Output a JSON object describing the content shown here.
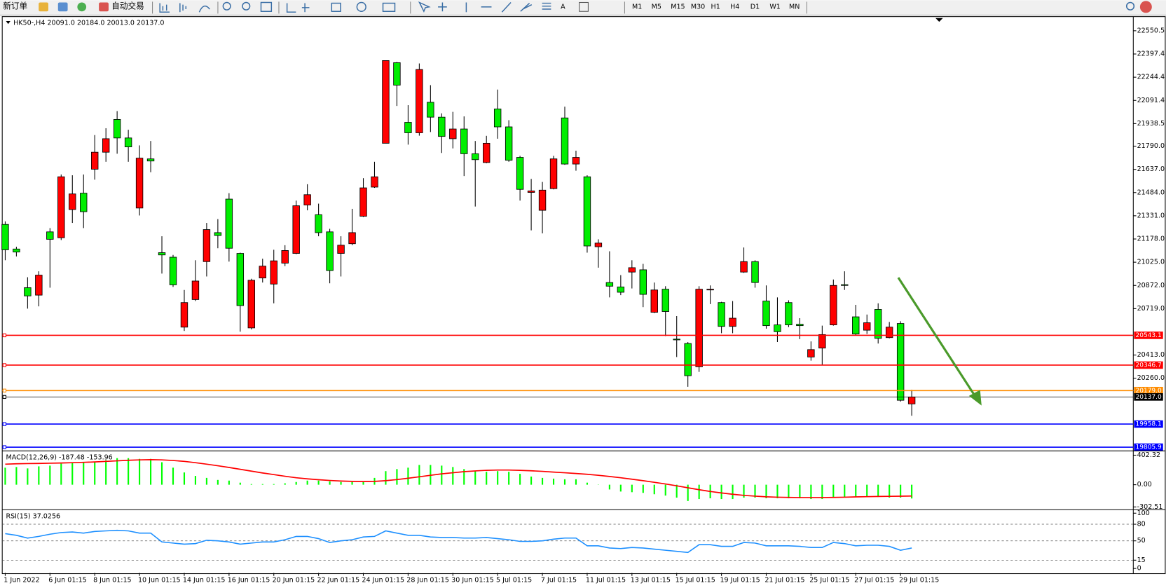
{
  "toolbar": {
    "new_order": "新订单",
    "auto_trading": "自动交易",
    "timeframes": [
      "M1",
      "M5",
      "M15",
      "M30",
      "H1",
      "H4",
      "D1",
      "W1",
      "MN"
    ]
  },
  "chart_data": [
    {
      "type": "candlestick",
      "title": "HK50-,H4  20091.0 20184.0 20013.0 20137.0",
      "categories": [
        "1 Jun 2022",
        null,
        null,
        null,
        "6 Jun 01:15",
        null,
        null,
        null,
        "8 Jun 01:15",
        null,
        null,
        null,
        "10 Jun 01:15",
        null,
        null,
        null,
        "14 Jun 01:15",
        null,
        null,
        null,
        "16 Jun 01:15",
        null,
        null,
        null,
        "20 Jun 01:15",
        null,
        null,
        null,
        "22 Jun 01:15",
        null,
        null,
        null,
        "24 Jun 01:15",
        null,
        null,
        null,
        "28 Jun 01:15",
        null,
        null,
        null,
        "30 Jun 01:15",
        null,
        null,
        null,
        "5 Jul 01:15",
        null,
        null,
        null,
        "7 Jul 01:15",
        null,
        null,
        null,
        "11 Jul 01:15",
        null,
        null,
        null,
        "13 Jul 01:15",
        null,
        null,
        null,
        "15 Jul 01:15",
        null,
        null,
        null,
        "19 Jul 01:15",
        null,
        null,
        null,
        "21 Jul 01:15",
        null,
        null,
        null,
        "25 Jul 01:15",
        null,
        null,
        null,
        "27 Jul 01:15",
        null,
        null,
        null,
        "29 Jul 01:15",
        null
      ],
      "open": [
        21274,
        21112,
        20857,
        20808,
        21225,
        21186,
        21372,
        21480,
        21638,
        21750,
        21966,
        21844,
        21382,
        21706,
        21088,
        21058,
        20597,
        20779,
        21029,
        21220,
        21441,
        21083,
        20592,
        20921,
        20881,
        21019,
        21083,
        21402,
        21338,
        21225,
        21083,
        21147,
        21328,
        21520,
        21809,
        22340,
        21947,
        21878,
        22079,
        21981,
        21839,
        21903,
        21740,
        21682,
        22035,
        21917,
        21716,
        21485,
        21367,
        21510,
        21976,
        21672,
        21588,
        21127,
        20891,
        20862,
        20960,
        20975,
        20695,
        20847,
        20518,
        20489,
        20336,
        20842,
        20759,
        20602,
        20960,
        21029,
        20769,
        20612,
        20759,
        20616,
        20400,
        20459,
        20612,
        20877,
        20665,
        20577,
        20714,
        20528,
        20621,
        20091
      ],
      "high": [
        21294,
        21127,
        20926,
        20965,
        21250,
        21603,
        21598,
        21603,
        21863,
        21908,
        22021,
        21898,
        21795,
        21824,
        21196,
        21073,
        20842,
        21038,
        21284,
        21309,
        21480,
        21088,
        20916,
        21048,
        21107,
        21137,
        21431,
        21539,
        21411,
        21245,
        21196,
        21377,
        21579,
        21687,
        22354,
        22345,
        22060,
        22335,
        22192,
        22006,
        22016,
        21986,
        21824,
        21858,
        22163,
        21961,
        21726,
        21574,
        21554,
        21726,
        22050,
        21760,
        21598,
        21176,
        21097,
        20940,
        21038,
        21014,
        20891,
        20867,
        20670,
        20499,
        20867,
        20872,
        20764,
        20769,
        21122,
        21038,
        20872,
        20793,
        20774,
        20656,
        20503,
        20607,
        20911,
        20965,
        20744,
        20680,
        20754,
        20631,
        20636,
        20184
      ],
      "low": [
        21038,
        21063,
        20719,
        20734,
        20857,
        21171,
        21284,
        21250,
        21569,
        21687,
        21740,
        21687,
        21333,
        21618,
        20950,
        20862,
        20572,
        20769,
        20931,
        21117,
        21029,
        20567,
        20582,
        20891,
        20754,
        20999,
        21078,
        21367,
        21196,
        20886,
        20931,
        21137,
        21323,
        21515,
        21809,
        22055,
        21800,
        21859,
        21883,
        21745,
        21775,
        21593,
        21392,
        21677,
        21839,
        21687,
        21431,
        21235,
        21215,
        21505,
        21667,
        21628,
        21088,
        20989,
        20793,
        20808,
        20852,
        20729,
        20690,
        20538,
        20400,
        20204,
        20302,
        20749,
        20557,
        20557,
        20955,
        20857,
        20587,
        20499,
        20597,
        20518,
        20376,
        20346,
        20607,
        20842,
        20543,
        20552,
        20489,
        20523,
        20106,
        20013
      ],
      "close": [
        21107,
        21092,
        20803,
        20940,
        21176,
        21588,
        21475,
        21358,
        21750,
        21839,
        21844,
        21785,
        21711,
        21692,
        21073,
        20876,
        20759,
        20901,
        21240,
        21201,
        21117,
        20739,
        20906,
        20999,
        21034,
        21102,
        21397,
        21470,
        21220,
        20970,
        21137,
        21220,
        21515,
        21588,
        22354,
        22192,
        21878,
        22295,
        21981,
        21854,
        21903,
        21740,
        21701,
        21809,
        21917,
        21697,
        21505,
        21495,
        21500,
        21706,
        21672,
        21716,
        21132,
        21151,
        20867,
        20827,
        20989,
        20813,
        20842,
        20700,
        20513,
        20277,
        20847,
        20847,
        20602,
        20656,
        21029,
        20891,
        20607,
        20567,
        20612,
        20607,
        20449,
        20548,
        20872,
        20872,
        20552,
        20626,
        20523,
        20597,
        20115,
        20137
      ],
      "up_color": "#ff0000",
      "down_color": "#00ee00",
      "ylim": [
        19786,
        22639
      ],
      "yticks": [
        22550.5,
        22397.4,
        22244.4,
        22091.4,
        21938.5,
        {
          "value": 21790,
          "label": "21790.0"
        },
        {
          "value": 21637,
          "label": "21637.0"
        },
        {
          "value": 21484,
          "label": "21484.0"
        },
        {
          "value": 21331,
          "label": "21331.0"
        },
        {
          "value": 21178,
          "label": "21178.0"
        },
        {
          "value": 21025,
          "label": "21025.0"
        },
        {
          "value": 20872,
          "label": "20872.0"
        },
        {
          "value": 20719,
          "label": "20719.0"
        },
        {
          "value": 20413,
          "label": "20413.0"
        },
        {
          "value": 20260,
          "label": "20260.0"
        }
      ],
      "hlines": [
        {
          "value": 20543.1,
          "label": "20543.1",
          "color": "#ff0000"
        },
        {
          "value": 20346.7,
          "label": "20346.7",
          "color": "#ff0000"
        },
        {
          "value": 20179,
          "label": "20179.0",
          "color": "#ff8c00"
        },
        {
          "value": 20137,
          "label": "20137.0",
          "color": "#000000"
        },
        {
          "value": 19958.1,
          "label": "19958.1",
          "color": "#0000ff"
        },
        {
          "value": 19805.9,
          "label": "19805.9",
          "color": "#0000ff"
        }
      ]
    },
    {
      "type": "macd",
      "title": "MACD(12,26,9) -187.48 -153.96",
      "series": [
        {
          "color": "#00ff00",
          "values": [
            232,
            241,
            222,
            250,
            260,
            287,
            297,
            297,
            315,
            334,
            362,
            362,
            352,
            352,
            306,
            232,
            167,
            120,
            93,
            65,
            56,
            28,
            9,
            9,
            9,
            19,
            37,
            56,
            56,
            46,
            37,
            37,
            46,
            93,
            185,
            213,
            232,
            269,
            269,
            260,
            241,
            213,
            185,
            176,
            185,
            176,
            148,
            111,
            93,
            83,
            74,
            74,
            28,
            3,
            -65,
            -93,
            -102,
            -111,
            -130,
            -148,
            -176,
            -222,
            -195,
            -185,
            -195,
            -195,
            -176,
            -176,
            -185,
            -185,
            -185,
            -185,
            -195,
            -195,
            -176,
            -167,
            -167,
            -167,
            -167,
            -176,
            -176,
            -187.48
          ]
        },
        {
          "color": "#ff0000",
          "values": [
            280,
            285,
            288,
            290,
            293,
            296,
            300,
            305,
            310,
            318,
            325,
            333,
            338,
            341,
            338,
            330,
            318,
            300,
            280,
            258,
            235,
            210,
            185,
            160,
            138,
            115,
            95,
            80,
            68,
            58,
            50,
            45,
            43,
            45,
            55,
            70,
            88,
            108,
            128,
            148,
            163,
            178,
            188,
            196,
            200,
            200,
            196,
            190,
            182,
            172,
            163,
            153,
            142,
            128,
            112,
            95,
            75,
            55,
            33,
            10,
            -15,
            -42,
            -68,
            -92,
            -112,
            -130,
            -145,
            -156,
            -165,
            -170,
            -173,
            -175,
            -175,
            -175,
            -173,
            -170,
            -166,
            -163,
            -160,
            -158,
            -156,
            -153.96
          ]
        }
      ],
      "ylim": [
        -330,
        450
      ],
      "yticks": [
        402.32,
        {
          "value": 0,
          "label": "0.00"
        },
        -302.51
      ]
    },
    {
      "type": "line",
      "title": "RSI(15) 37.0256",
      "series": [
        {
          "color": "#1e90ff",
          "values": [
            63,
            60,
            55,
            58,
            62,
            65,
            66,
            64,
            67,
            68,
            69,
            68,
            64,
            64,
            48,
            46,
            44,
            45,
            51,
            50,
            48,
            44,
            46,
            48,
            48,
            52,
            58,
            58,
            54,
            47,
            50,
            52,
            57,
            58,
            68,
            64,
            60,
            60,
            57,
            56,
            56,
            55,
            55,
            56,
            54,
            52,
            49,
            49,
            50,
            53,
            55,
            55,
            41,
            41,
            37,
            36,
            38,
            37,
            35,
            33,
            31,
            29,
            43,
            43,
            40,
            40,
            47,
            46,
            41,
            41,
            41,
            40,
            38,
            38,
            47,
            45,
            41,
            42,
            42,
            40,
            33,
            37.0256
          ]
        }
      ],
      "ylim": [
        -8,
        105
      ],
      "yticks": [
        100,
        80,
        50,
        15,
        0
      ],
      "levels": [
        80,
        50,
        15
      ]
    }
  ]
}
